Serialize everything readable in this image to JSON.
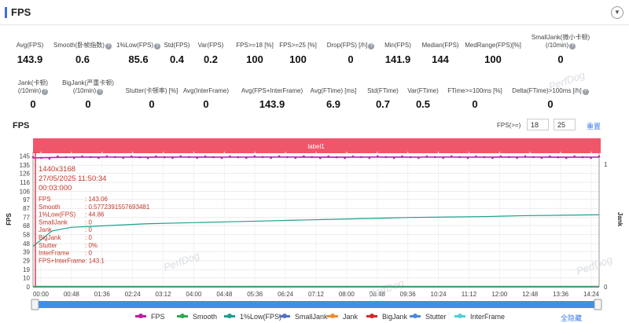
{
  "header": {
    "title": "FPS",
    "collapse_icon": "chevron-down-icon"
  },
  "metrics_row1": [
    {
      "label": "Avg(FPS)",
      "value": "143.9",
      "help": false
    },
    {
      "label": "Smooth(卧帧指数)",
      "value": "0.6",
      "help": true
    },
    {
      "label": "1%Low(FPS)",
      "value": "85.6",
      "help": true
    },
    {
      "label": "Std(FPS)",
      "value": "0.4",
      "help": false
    },
    {
      "label": "Var(FPS)",
      "value": "0.2",
      "help": false
    },
    {
      "label": "FPS>=18 [%]",
      "value": "100",
      "help": false
    },
    {
      "label": "FPS>=25 [%]",
      "value": "100",
      "help": false
    },
    {
      "label": "Drop(FPS) [/h]",
      "value": "0",
      "help": true
    },
    {
      "label": "Min(FPS)",
      "value": "141.9",
      "help": false
    },
    {
      "label": "Median(FPS)",
      "value": "144",
      "help": false
    },
    {
      "label": "MedRange(FPS)[%]",
      "value": "100",
      "help": false
    },
    {
      "label": "SmallJank(微小卡顿)\n(/10min)",
      "value": "0",
      "help": true
    }
  ],
  "metrics_row2": [
    {
      "label": "Jank(卡顿)\n(/10min)",
      "value": "0",
      "help": true
    },
    {
      "label": "BigJank(严重卡顿)\n(/10min)",
      "value": "0",
      "help": true
    },
    {
      "label": "Stutter(卡顿率) [%]",
      "value": "0",
      "help": false
    },
    {
      "label": "Avg(InterFrame)",
      "value": "0",
      "help": false
    },
    {
      "label": "Avg(FPS+InterFrame)",
      "value": "143.9",
      "help": false
    },
    {
      "label": "Avg(FTime) [ms]",
      "value": "6.9",
      "help": false
    },
    {
      "label": "Std(FTime)",
      "value": "0.7",
      "help": false
    },
    {
      "label": "Var(FTime)",
      "value": "0.5",
      "help": false
    },
    {
      "label": "FTime>=100ms [%]",
      "value": "0",
      "help": false
    },
    {
      "label": "Delta(FTime)>100ms [/h]",
      "value": "0",
      "help": true
    }
  ],
  "chart_section": {
    "title": "FPS",
    "threshold_label": "FPS(>=)",
    "threshold_values": [
      "18",
      "25"
    ],
    "reset_label": "重置",
    "band_label": "label1",
    "hide_all_label": "全隐藏",
    "watermark": "PerfDog"
  },
  "tooltip": {
    "lines": [
      "1440x3168",
      "27/05/2025 11:50:34",
      "00:03:000"
    ],
    "rows": [
      {
        "k": "FPS",
        "v": ": 143.06"
      },
      {
        "k": "Smooth",
        "v": ": 0.5772391557693481"
      },
      {
        "k": "1%Low(FPS)",
        "v": ": 44.86"
      },
      {
        "k": "SmallJank",
        "v": ": 0"
      },
      {
        "k": "Jank",
        "v": ": 0"
      },
      {
        "k": "BigJank",
        "v": ": 0"
      },
      {
        "k": "Stutter",
        "v": ": 0%"
      },
      {
        "k": "InterFrame",
        "v": ": 0"
      },
      {
        "k": "FPS+InterFrame",
        "v": ": 143.1"
      }
    ]
  },
  "chart_data": {
    "type": "line",
    "ylabel": "FPS",
    "y2label": "Jank",
    "ylim": [
      0,
      150
    ],
    "yticks": [
      0,
      10,
      19,
      29,
      39,
      48,
      58,
      68,
      77,
      87,
      97,
      106,
      116,
      126,
      135,
      145
    ],
    "y2ticks": [
      "0",
      "1"
    ],
    "x_ticks": [
      "00:00",
      "00:48",
      "01:36",
      "02:24",
      "03:12",
      "04:00",
      "04:48",
      "05:36",
      "06:24",
      "07:12",
      "08:00",
      "08:48",
      "09:36",
      "10:24",
      "11:12",
      "12:00",
      "12:48",
      "13:36",
      "14:24"
    ],
    "x_range_seconds": [
      0,
      900
    ],
    "grid": true,
    "legend_position": "bottom",
    "colors": {
      "FPS": "#c01ca6",
      "Smooth": "#31a851",
      "1%Low(FPS)": "#1f9e8c",
      "SmallJank": "#5470c6",
      "Jank": "#f08c2e",
      "BigJank": "#d7262b",
      "Stutter": "#4f87e0",
      "InterFrame": "#4fd0d6"
    },
    "series": [
      {
        "name": "FPS",
        "x": [
          0,
          60,
          120,
          180,
          240,
          300,
          360,
          420,
          480,
          540,
          600,
          660,
          720,
          780,
          840,
          900
        ],
        "values": [
          143.1,
          143.9,
          144,
          143.8,
          144,
          143.9,
          144,
          144,
          143.8,
          144,
          143.9,
          144,
          143.9,
          144,
          143.8,
          143.9
        ]
      },
      {
        "name": "Smooth",
        "x": [
          0,
          900
        ],
        "values": [
          0.6,
          0.6
        ]
      },
      {
        "name": "1%Low(FPS)",
        "x": [
          0,
          30,
          60,
          120,
          180,
          240,
          300,
          360,
          420,
          480,
          540,
          600,
          660,
          720,
          780,
          840,
          900
        ],
        "values": [
          44.9,
          62,
          66,
          68,
          70,
          71,
          72,
          73,
          74,
          75,
          76,
          77,
          77.5,
          78,
          79,
          79.5,
          80
        ]
      },
      {
        "name": "SmallJank",
        "x": [
          0,
          900
        ],
        "values": [
          0,
          0
        ]
      },
      {
        "name": "Jank",
        "x": [
          0,
          900
        ],
        "values": [
          0,
          0
        ]
      },
      {
        "name": "BigJank",
        "x": [
          0,
          900
        ],
        "values": [
          0,
          0
        ]
      },
      {
        "name": "Stutter",
        "x": [
          0,
          900
        ],
        "values": [
          0,
          0
        ]
      },
      {
        "name": "InterFrame",
        "x": [
          0,
          900
        ],
        "values": [
          0,
          0
        ]
      }
    ]
  }
}
